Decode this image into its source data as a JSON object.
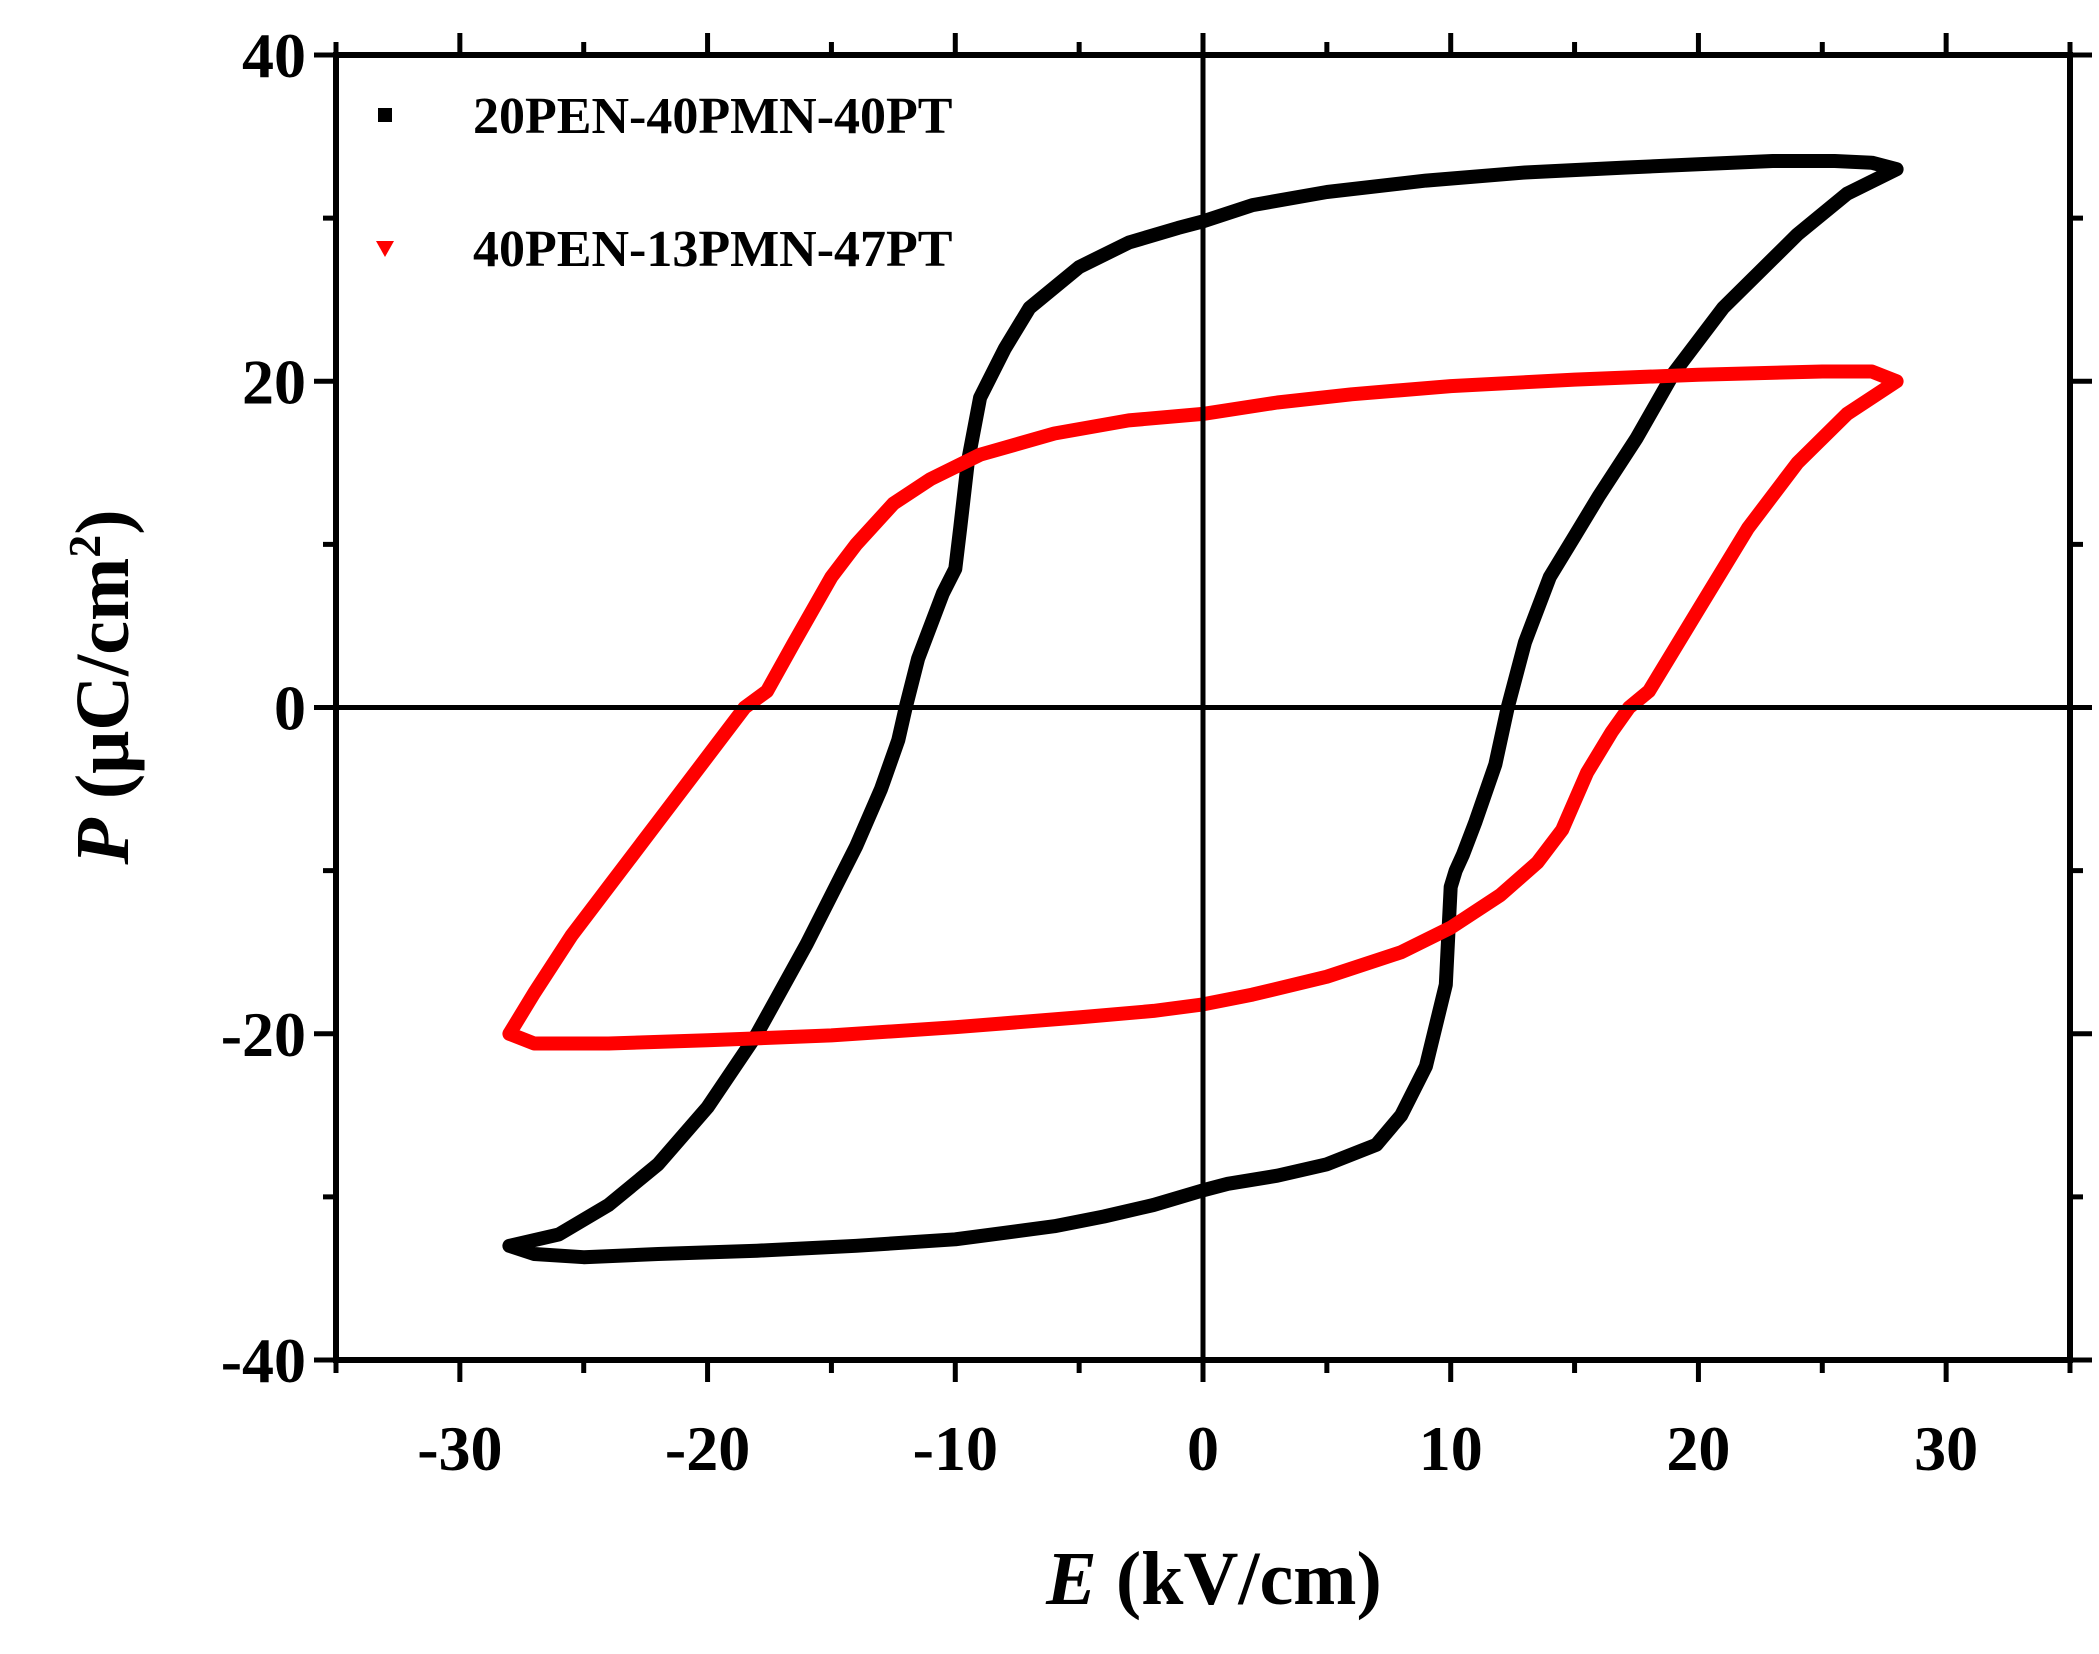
{
  "chart_data": {
    "type": "line",
    "title": "",
    "xlabel": {
      "symbol": "E",
      "unit": " (kV/cm)"
    },
    "ylabel": {
      "symbol": "P",
      "unit_prefix": " (μC/cm",
      "unit_sup": "2",
      "unit_suffix": ")"
    },
    "xlim": [
      -35,
      35
    ],
    "ylim": [
      -40,
      40
    ],
    "xticks": [
      -30,
      -20,
      -10,
      0,
      10,
      20,
      30
    ],
    "xtick_labels": [
      "-30",
      "-20",
      "-10",
      "0",
      "10",
      "20",
      "30"
    ],
    "yticks": [
      -40,
      -20,
      0,
      20,
      40
    ],
    "ytick_labels": [
      "-40",
      "-20",
      "0",
      "20",
      "40"
    ],
    "legend_position": "top-left",
    "series": [
      {
        "name": "20PEN-40PMN-40PT",
        "color": "#000000",
        "marker": "square",
        "x": [
          28,
          26,
          24,
          21,
          19,
          17.5,
          16,
          15,
          14,
          13,
          12.3,
          11.8,
          11,
          10.5,
          10.2,
          10,
          9.8,
          9,
          8,
          7,
          5,
          3,
          1,
          0,
          -2,
          -4,
          -6,
          -8,
          -10,
          -14,
          -18,
          -22,
          -25,
          -27,
          -28,
          -26,
          -24,
          -22,
          -20,
          -18,
          -16,
          -14,
          -13,
          -12.3,
          -12,
          -11.5,
          -10.5,
          -10,
          -9.8,
          -9.5,
          -9,
          -8,
          -7,
          -5,
          -3,
          -1,
          0,
          2,
          5,
          9,
          13,
          17,
          20,
          23,
          25.5,
          27,
          28
        ],
        "y": [
          33,
          31.5,
          29,
          24.5,
          20.5,
          16.5,
          13,
          10.5,
          8,
          4,
          0,
          -3.5,
          -7,
          -9,
          -10,
          -11,
          -17,
          -22,
          -25,
          -26.8,
          -28,
          -28.7,
          -29.2,
          -29.6,
          -30.5,
          -31.2,
          -31.8,
          -32.2,
          -32.6,
          -33,
          -33.3,
          -33.5,
          -33.7,
          -33.5,
          -33,
          -32.3,
          -30.5,
          -28,
          -24.5,
          -20,
          -14.5,
          -8.5,
          -5,
          -2,
          0,
          3,
          7,
          8.5,
          11,
          15,
          19,
          22,
          24.5,
          27,
          28.5,
          29.4,
          29.8,
          30.8,
          31.6,
          32.3,
          32.8,
          33.1,
          33.3,
          33.5,
          33.5,
          33.4,
          33
        ]
      },
      {
        "name": "40PEN-13PMN-47PT",
        "color": "#ff0000",
        "marker": "triangle-down",
        "x": [
          28,
          26,
          24,
          22,
          20,
          19,
          18,
          17.2,
          16.5,
          15.5,
          14.5,
          13.5,
          12,
          10,
          8,
          5,
          2,
          0,
          -2,
          -5,
          -10,
          -15,
          -20,
          -24,
          -27,
          -28,
          -27,
          -25.5,
          -24,
          -22,
          -20,
          -18.5,
          -17.6,
          -16.5,
          -15,
          -14,
          -12.5,
          -11,
          -9,
          -6,
          -3,
          0,
          3,
          6,
          10,
          15,
          20,
          25,
          27,
          28
        ],
        "y": [
          20,
          18,
          15,
          11,
          6,
          3.5,
          1,
          0,
          -1.5,
          -4,
          -7.5,
          -9.5,
          -11.5,
          -13.5,
          -15,
          -16.5,
          -17.6,
          -18.2,
          -18.6,
          -19,
          -19.6,
          -20.1,
          -20.4,
          -20.6,
          -20.6,
          -20,
          -17.5,
          -14,
          -11,
          -7,
          -3,
          0,
          1,
          4,
          8,
          10,
          12.5,
          14,
          15.5,
          16.8,
          17.6,
          18,
          18.7,
          19.2,
          19.7,
          20.1,
          20.4,
          20.6,
          20.6,
          20
        ]
      }
    ]
  }
}
